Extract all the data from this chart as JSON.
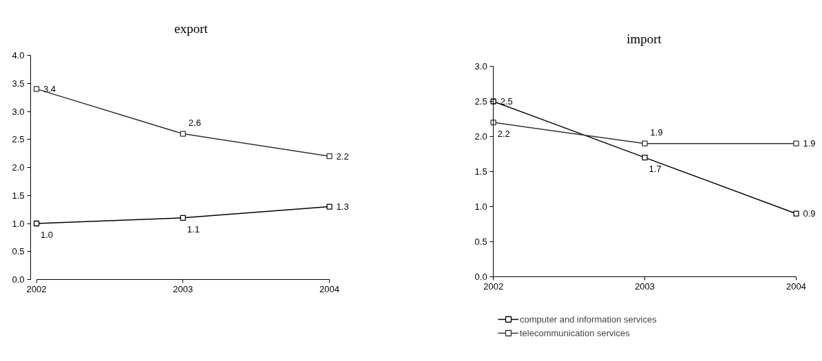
{
  "chart_data": [
    {
      "type": "line",
      "title": "export",
      "categories": [
        "2002",
        "2003",
        "2004"
      ],
      "series": [
        {
          "color": "#000000",
          "values": [
            1.0,
            1.1,
            1.3
          ],
          "value_labels": [
            "1.0",
            "1.1",
            "1.3"
          ]
        },
        {
          "color": "#333333",
          "values": [
            3.4,
            2.6,
            2.2
          ],
          "value_labels": [
            "3.4",
            "2.6",
            "2.2"
          ]
        }
      ],
      "ylim": [
        0,
        4
      ],
      "yticks": [
        {
          "value": 0,
          "label": "0.0"
        },
        0.5,
        {
          "value": 1,
          "label": "1.0"
        },
        1.5,
        {
          "value": 2,
          "label": "2.0"
        },
        2.5,
        {
          "value": 3,
          "label": "3.0"
        },
        3.5,
        {
          "value": 4,
          "label": "4.0"
        }
      ],
      "marker": "square",
      "line_style": "solid"
    },
    {
      "type": "line",
      "title": "import",
      "categories": [
        "2002",
        "2003",
        "2004"
      ],
      "series": [
        {
          "name": "computer and information services",
          "color": "#000000",
          "values": [
            2.5,
            1.7,
            0.9
          ],
          "value_labels": [
            "2.5",
            "1.7",
            "0.9"
          ]
        },
        {
          "name": "telecommunication services",
          "color": "#333333",
          "values": [
            2.2,
            1.9,
            1.9
          ],
          "value_labels": [
            "2.2",
            "1.9",
            "1.9"
          ]
        }
      ],
      "ylim": [
        0,
        3
      ],
      "yticks": [
        {
          "value": 0,
          "label": "0.0"
        },
        0.5,
        {
          "value": 1,
          "label": "1.0"
        },
        1.5,
        {
          "value": 2,
          "label": "2.0"
        },
        2.5,
        {
          "value": 3,
          "label": "3.0"
        }
      ],
      "legend": "bottom",
      "marker": "square",
      "line_style": "solid"
    }
  ]
}
